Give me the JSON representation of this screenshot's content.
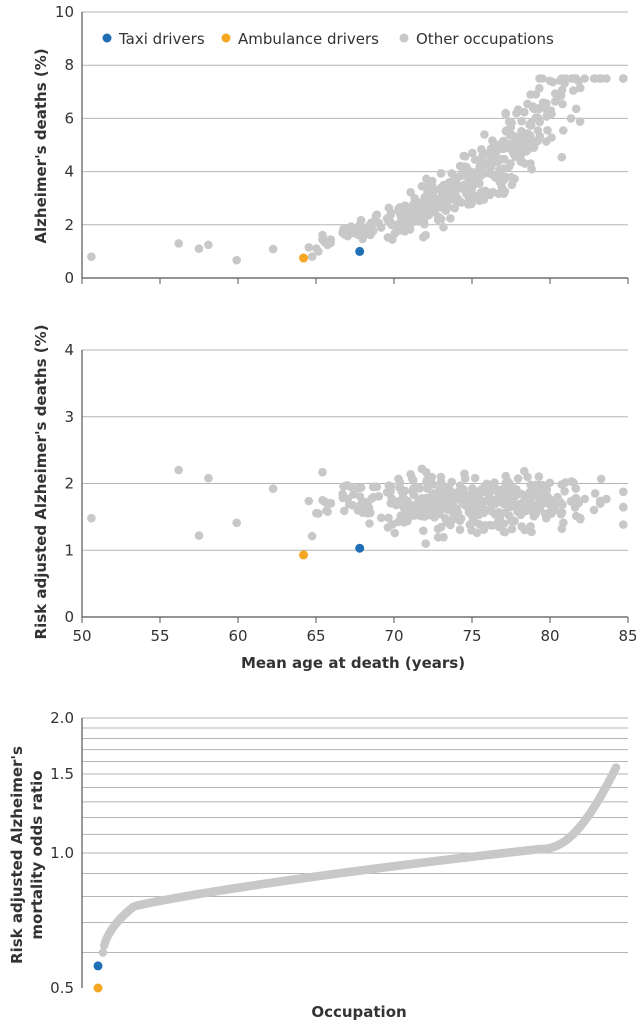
{
  "colors": {
    "taxi": "#1f6fb5",
    "ambulance": "#f5a623",
    "other": "#c8c8c8",
    "grid": "#b5b5b5",
    "axis": "#555555",
    "text": "#333333"
  },
  "legend": {
    "position": "top-left",
    "items": [
      {
        "name": "Taxi drivers",
        "color": "#1f6fb5"
      },
      {
        "name": "Ambulance drivers",
        "color": "#f5a623"
      },
      {
        "name": "Other occupations",
        "color": "#c8c8c8"
      }
    ]
  },
  "chart_data": [
    {
      "type": "scatter",
      "ylabel": "Alzheimer's deaths (%)",
      "xlim": [
        50,
        85
      ],
      "ylim": [
        0,
        10
      ],
      "ytick_labels": [
        "0",
        "2",
        "4",
        "6",
        "8",
        "10"
      ],
      "grid": true,
      "series": [
        {
          "name": "Taxi drivers",
          "points": [
            [
              67.8,
              1.0
            ]
          ]
        },
        {
          "name": "Ambulance drivers",
          "points": [
            [
              64.2,
              0.75
            ]
          ]
        },
        {
          "name": "Other occupations",
          "points_note": "approx. 440 occupations, values estimated from figure",
          "points": []
        }
      ]
    },
    {
      "type": "scatter",
      "xlabel": "Mean age at death (years)",
      "ylabel": "Risk adjusted Alzheimer's deaths (%)",
      "xlim": [
        50,
        85
      ],
      "ylim": [
        0,
        4
      ],
      "xtick_labels": [
        "50",
        "55",
        "60",
        "65",
        "70",
        "75",
        "80",
        "85"
      ],
      "ytick_labels": [
        "0",
        "1",
        "2",
        "3",
        "4"
      ],
      "grid": true,
      "series": [
        {
          "name": "Taxi drivers",
          "points": [
            [
              67.8,
              1.03
            ]
          ]
        },
        {
          "name": "Ambulance drivers",
          "points": [
            [
              64.2,
              0.93
            ]
          ]
        },
        {
          "name": "Other occupations",
          "points": []
        }
      ]
    },
    {
      "type": "scatter",
      "xlabel": "Occupation",
      "ylabel": "Risk adjusted Alzheimer's mortality odds ratio",
      "yscale": "log",
      "ylim": [
        0.5,
        2.0
      ],
      "ytick_labels": [
        "0.5",
        "1.0",
        "1.5",
        "2.0"
      ],
      "grid": true,
      "series": [
        {
          "name": "Ambulance drivers",
          "rank": 1,
          "value": 0.5
        },
        {
          "name": "Taxi drivers",
          "rank": 2,
          "value": 0.56
        },
        {
          "name": "Other occupations",
          "count": 443,
          "range": [
            0.6,
            1.55
          ]
        }
      ]
    }
  ]
}
